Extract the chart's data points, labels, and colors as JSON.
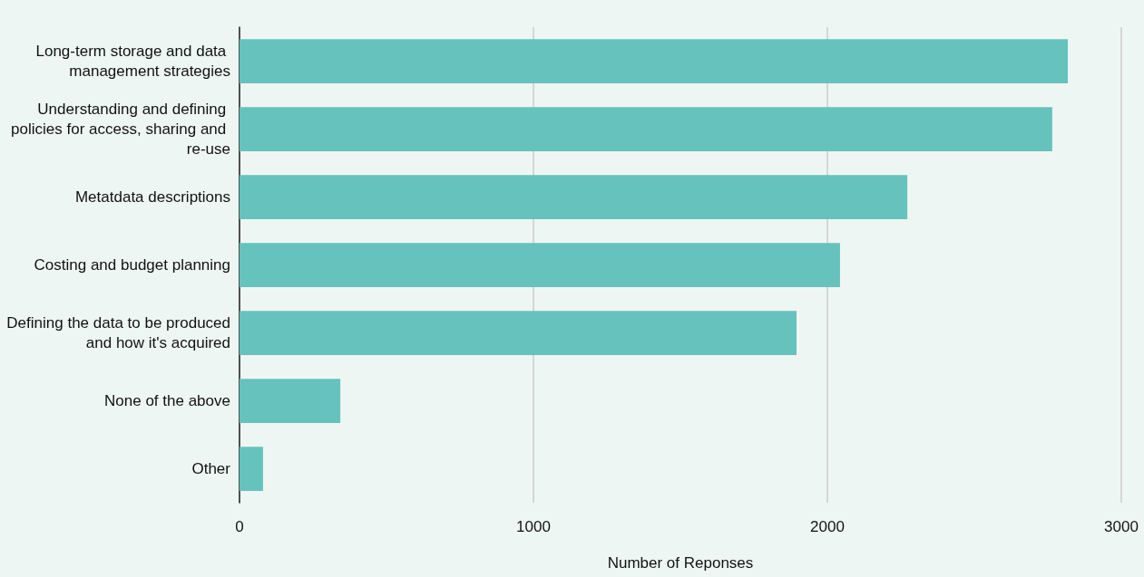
{
  "chart_data": {
    "type": "bar",
    "orientation": "horizontal",
    "xlabel": "Number of Reponses",
    "categories": [
      "Long-term storage and data management strategies",
      "Understanding and defining policies for access, sharing and re-use",
      "Metatdata descriptions",
      "Costing and budget planning",
      "Defining the data to be produced and how it's acquired",
      "None of the above",
      "Other"
    ],
    "values": [
      2818,
      2765,
      2272,
      2043,
      1895,
      343,
      80
    ],
    "color": "#66c2bc",
    "xlim": [
      0,
      3000
    ],
    "xticks": [
      0,
      1000,
      2000,
      3000
    ],
    "grid": "x"
  }
}
